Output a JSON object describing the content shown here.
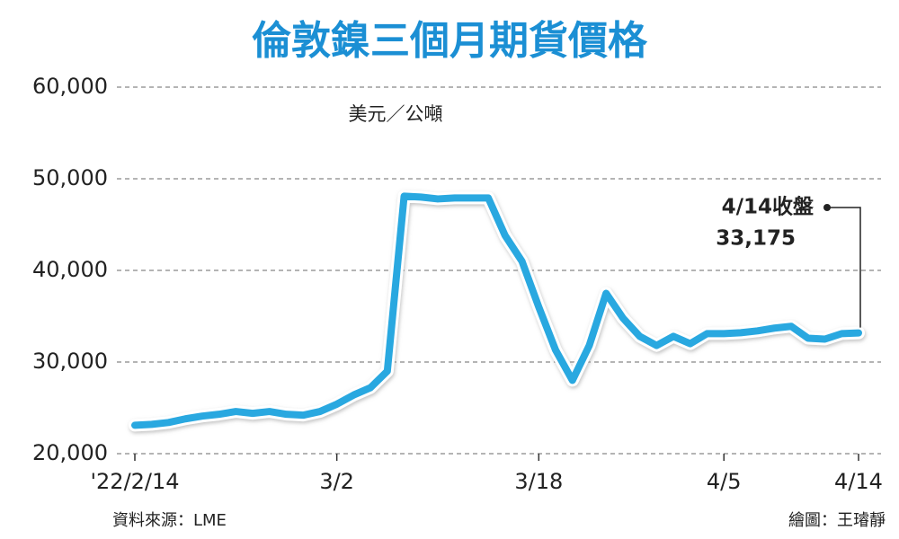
{
  "chart_data": {
    "type": "line",
    "title": "倫敦鎳三個月期貨價格",
    "y_unit": "美元／公噸",
    "source": "資料來源：LME",
    "credit": "繪圖：王璿靜",
    "categories": [
      "'22/2/14",
      null,
      null,
      null,
      null,
      null,
      null,
      null,
      null,
      null,
      null,
      null,
      "3/2",
      null,
      null,
      null,
      null,
      null,
      null,
      null,
      null,
      null,
      null,
      null,
      "3/18",
      null,
      null,
      null,
      null,
      null,
      null,
      null,
      null,
      null,
      null,
      "4/5",
      null,
      null,
      null,
      null,
      null,
      null,
      null,
      "4/14"
    ],
    "series": [
      {
        "name": "倫敦鎳三個月期貨",
        "color": "#29a8e0",
        "values": [
          23100,
          23200,
          23400,
          23800,
          24100,
          24300,
          24600,
          24400,
          24600,
          24300,
          24200,
          24600,
          25400,
          26400,
          27200,
          29000,
          48100,
          48000,
          47800,
          47900,
          47900,
          47900,
          43800,
          41000,
          36000,
          31300,
          28000,
          31800,
          37500,
          34800,
          32800,
          31800,
          32800,
          32000,
          33100,
          33100,
          33200,
          33400,
          33700,
          33900,
          32600,
          32500,
          33100,
          33175
        ]
      }
    ],
    "annotation": {
      "label": "4/14收盤",
      "value": 33175,
      "value_label": "33,175"
    },
    "ylim": [
      20000,
      60000
    ],
    "yticks": [
      {
        "value": 20000,
        "label": "20,000"
      },
      {
        "value": 30000,
        "label": "30,000"
      },
      {
        "value": 40000,
        "label": "40,000"
      },
      {
        "value": 50000,
        "label": "50,000"
      },
      {
        "value": 60000,
        "label": "60,000"
      }
    ],
    "grid": true
  }
}
